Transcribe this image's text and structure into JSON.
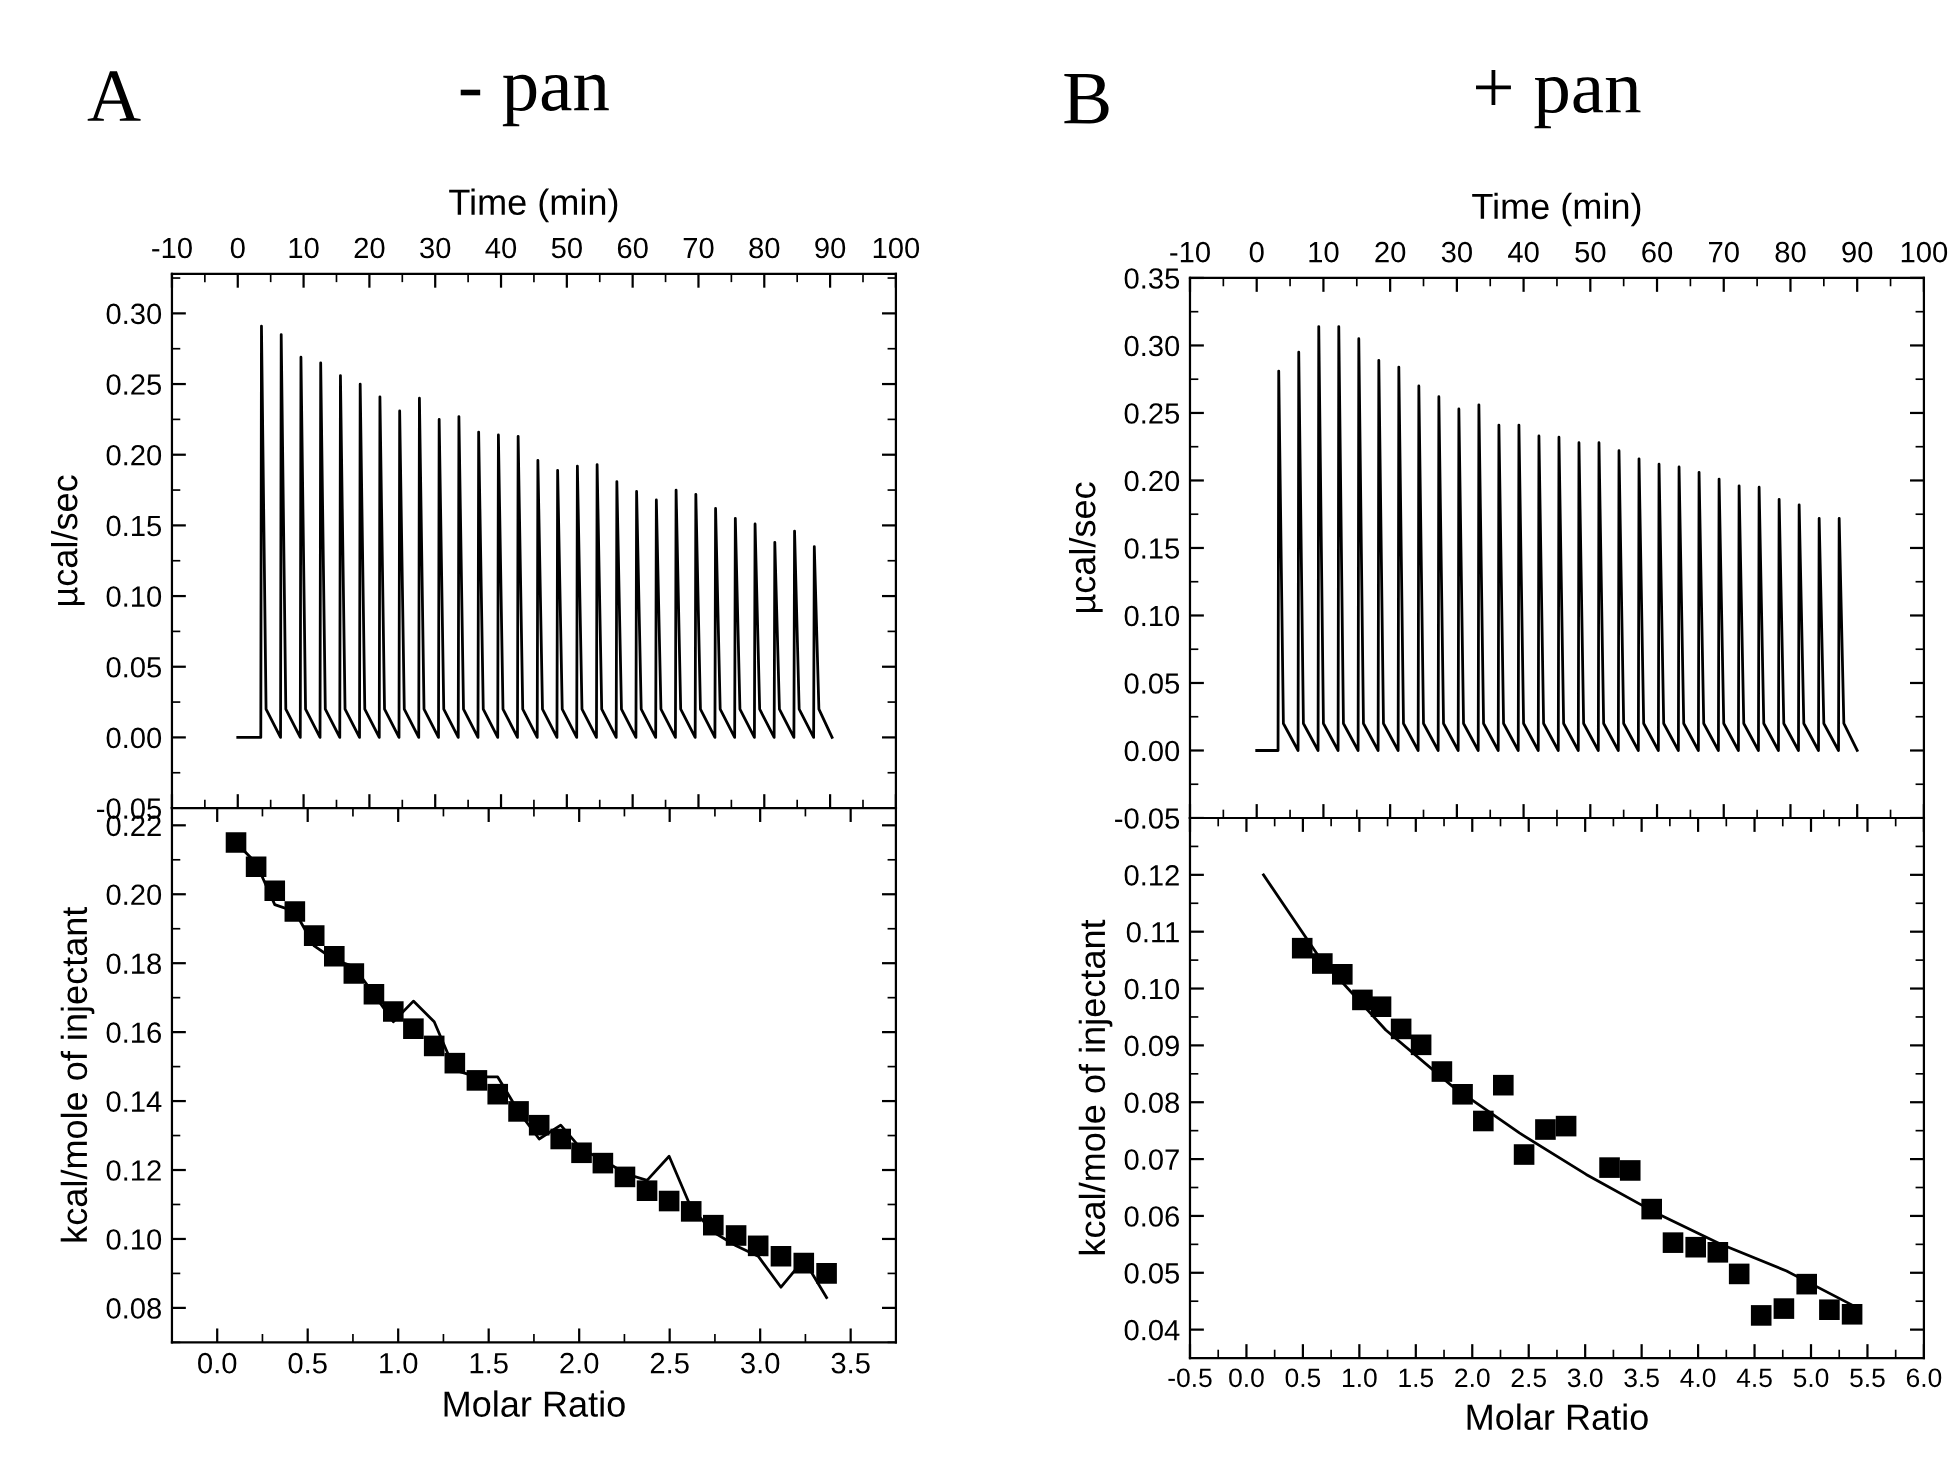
{
  "chart_data": [
    {
      "type": "line",
      "title": "- pan",
      "annotations": [
        "A"
      ],
      "xlabel": "Time (min)",
      "ylabel": "µcal/sec",
      "xlim": [
        -10,
        100
      ],
      "xticks": [
        -10,
        0,
        10,
        20,
        30,
        40,
        50,
        60,
        70,
        80,
        90,
        100
      ],
      "ylim": [
        -0.05,
        0.328
      ],
      "yticks": [
        {
          "value": -0.05,
          "label": "-0.05"
        },
        {
          "value": 0,
          "label": "0.00"
        },
        {
          "value": 0.05,
          "label": "0.05"
        },
        {
          "value": 0.1,
          "label": "0.10"
        },
        {
          "value": 0.15,
          "label": "0.15"
        },
        {
          "value": 0.2,
          "label": "0.20"
        },
        {
          "value": 0.25,
          "label": "0.25"
        },
        {
          "value": 0.3,
          "label": "0.30"
        }
      ],
      "series": [
        {
          "color": "#000000",
          "marker": "none",
          "line_style": "solid",
          "x": [
            0,
            3.5,
            3.6,
            4.3,
            6.5,
            6.6,
            7.3,
            9.5,
            9.6,
            10.3,
            12.5,
            12.6,
            13.3,
            15.5,
            15.6,
            16.3,
            18.5,
            18.6,
            19.3,
            21.5,
            21.6,
            22.3,
            24.5,
            24.6,
            25.3,
            27.5,
            27.6,
            28.3,
            30.5,
            30.6,
            31.3,
            33.5,
            33.6,
            34.3,
            36.5,
            36.6,
            37.3,
            39.5,
            39.6,
            40.3,
            42.5,
            42.6,
            43.3,
            45.5,
            45.6,
            46.3,
            48.5,
            48.6,
            49.3,
            51.5,
            51.6,
            52.3,
            54.5,
            54.6,
            55.3,
            57.5,
            57.6,
            58.3,
            60.5,
            60.6,
            61.3,
            63.5,
            63.6,
            64.3,
            66.5,
            66.6,
            67.3,
            69.5,
            69.6,
            70.3,
            72.5,
            72.6,
            73.3,
            75.5,
            75.6,
            76.3,
            78.5,
            78.6,
            79.3,
            81.5,
            81.6,
            82.3,
            84.5,
            84.6,
            85.3,
            87.5,
            87.6,
            88.3,
            90.3
          ],
          "values": [
            0,
            0,
            0.291,
            0.02,
            0,
            0.285,
            0.02,
            0,
            0.269,
            0.02,
            0,
            0.265,
            0.02,
            0,
            0.256,
            0.02,
            0,
            0.25,
            0.02,
            0,
            0.241,
            0.02,
            0,
            0.231,
            0.02,
            0,
            0.24,
            0.02,
            0,
            0.225,
            0.02,
            0,
            0.227,
            0.02,
            0,
            0.216,
            0.02,
            0,
            0.214,
            0.02,
            0,
            0.213,
            0.02,
            0,
            0.196,
            0.02,
            0,
            0.189,
            0.02,
            0,
            0.192,
            0.02,
            0,
            0.193,
            0.02,
            0,
            0.181,
            0.02,
            0,
            0.174,
            0.02,
            0,
            0.168,
            0.02,
            0,
            0.175,
            0.02,
            0,
            0.172,
            0.02,
            0,
            0.162,
            0.02,
            0,
            0.155,
            0.02,
            0,
            0.151,
            0.02,
            0,
            0.138,
            0.02,
            0,
            0.146,
            0.02,
            0,
            0.135,
            0.02,
            0
          ]
        }
      ]
    },
    {
      "type": "scatter",
      "xlabel": "Molar Ratio",
      "ylabel": "kcal/mole of injectant",
      "xlim": [
        -0.25,
        3.75
      ],
      "xticks": [
        {
          "value": 0,
          "label": "0.0"
        },
        {
          "value": 0.5,
          "label": "0.5"
        },
        {
          "value": 1,
          "label": "1.0"
        },
        {
          "value": 1.5,
          "label": "1.5"
        },
        {
          "value": 2,
          "label": "2.0"
        },
        {
          "value": 2.5,
          "label": "2.5"
        },
        {
          "value": 3,
          "label": "3.0"
        },
        {
          "value": 3.5,
          "label": "3.5"
        }
      ],
      "ylim": [
        0.07,
        0.225
      ],
      "yticks": [
        {
          "value": 0.08,
          "label": "0.08"
        },
        {
          "value": 0.1,
          "label": "0.10"
        },
        {
          "value": 0.12,
          "label": "0.12"
        },
        {
          "value": 0.14,
          "label": "0.14"
        },
        {
          "value": 0.16,
          "label": "0.16"
        },
        {
          "value": 0.18,
          "label": "0.18"
        },
        {
          "value": 0.2,
          "label": "0.20"
        },
        {
          "value": 0.22,
          "label": "0.22"
        }
      ],
      "series": [
        {
          "type": "scatter",
          "color": "#000000",
          "marker": "square",
          "x": [
            0.104,
            0.215,
            0.318,
            0.429,
            0.536,
            0.647,
            0.755,
            0.866,
            0.973,
            1.084,
            1.199,
            1.313,
            1.435,
            1.55,
            1.665,
            1.779,
            1.898,
            2.013,
            2.131,
            2.253,
            2.375,
            2.497,
            2.619,
            2.741,
            2.867,
            2.989,
            3.115,
            3.241,
            3.367
          ],
          "values": [
            0.215,
            0.208,
            0.201,
            0.195,
            0.188,
            0.182,
            0.177,
            0.171,
            0.166,
            0.161,
            0.156,
            0.151,
            0.146,
            0.142,
            0.137,
            0.133,
            0.129,
            0.125,
            0.122,
            0.118,
            0.114,
            0.111,
            0.108,
            0.104,
            0.101,
            0.098,
            0.095,
            0.093,
            0.09
          ]
        },
        {
          "type": "line",
          "color": "#000000",
          "marker": "none",
          "line_style": "solid",
          "x": [
            0.104,
            0.215,
            0.318,
            0.429,
            0.536,
            0.647,
            0.755,
            0.866,
            0.973,
            1.084,
            1.199,
            1.313,
            1.435,
            1.55,
            1.665,
            1.779,
            1.898,
            2.013,
            2.131,
            2.253,
            2.375,
            2.497,
            2.619,
            2.741,
            2.867,
            2.989,
            3.115,
            3.241,
            3.367
          ],
          "values": [
            0.215,
            0.209,
            0.197,
            0.195,
            0.185,
            0.181,
            0.179,
            0.171,
            0.163,
            0.169,
            0.163,
            0.149,
            0.147,
            0.147,
            0.137,
            0.129,
            0.133,
            0.126,
            0.123,
            0.119,
            0.117,
            0.124,
            0.109,
            0.102,
            0.098,
            0.095,
            0.086,
            0.094,
            0.083
          ]
        }
      ]
    },
    {
      "type": "line",
      "title": "+ pan",
      "annotations": [
        "B"
      ],
      "xlabel": "Time (min)",
      "ylabel": "µcal/sec",
      "xlim": [
        -10,
        100
      ],
      "xticks": [
        -10,
        0,
        10,
        20,
        30,
        40,
        50,
        60,
        70,
        80,
        90,
        100
      ],
      "ylim": [
        -0.05,
        0.35
      ],
      "yticks": [
        {
          "value": -0.05,
          "label": "-0.05"
        },
        {
          "value": 0,
          "label": "0.00"
        },
        {
          "value": 0.05,
          "label": "0.05"
        },
        {
          "value": 0.1,
          "label": "0.10"
        },
        {
          "value": 0.15,
          "label": "0.15"
        },
        {
          "value": 0.2,
          "label": "0.20"
        },
        {
          "value": 0.25,
          "label": "0.25"
        },
        {
          "value": 0.3,
          "label": "0.30"
        },
        {
          "value": 0.35,
          "label": "0.35"
        }
      ],
      "series": [
        {
          "color": "#000000",
          "marker": "none",
          "line_style": "solid",
          "x": [
            0,
            3.2,
            3.3,
            4.0,
            6.2,
            6.3,
            7.0,
            9.2,
            9.3,
            10.0,
            12.2,
            12.3,
            13.0,
            15.2,
            15.3,
            16.0,
            18.2,
            18.3,
            19.0,
            21.2,
            21.3,
            22.0,
            24.2,
            24.3,
            25.0,
            27.2,
            27.3,
            28.0,
            30.2,
            30.3,
            31.0,
            33.2,
            33.3,
            34.0,
            36.2,
            36.3,
            37.0,
            39.2,
            39.3,
            40.0,
            42.2,
            42.3,
            43.0,
            45.2,
            45.3,
            46.0,
            48.2,
            48.3,
            49.0,
            51.2,
            51.3,
            52.0,
            54.2,
            54.3,
            55.0,
            57.2,
            57.3,
            58.0,
            60.2,
            60.3,
            61.0,
            63.2,
            63.3,
            64.0,
            66.2,
            66.3,
            67.0,
            69.2,
            69.3,
            70.0,
            72.2,
            72.3,
            73.0,
            75.2,
            75.3,
            76.0,
            78.2,
            78.3,
            79.0,
            81.2,
            81.3,
            82.0,
            84.2,
            84.3,
            85.0,
            87.2,
            87.3,
            88.0,
            90
          ],
          "values": [
            0,
            0,
            0.281,
            0.02,
            0,
            0.295,
            0.02,
            0,
            0.314,
            0.02,
            0,
            0.314,
            0.02,
            0,
            0.305,
            0.02,
            0,
            0.289,
            0.02,
            0,
            0.284,
            0.02,
            0,
            0.27,
            0.02,
            0,
            0.262,
            0.02,
            0,
            0.253,
            0.02,
            0,
            0.256,
            0.02,
            0,
            0.241,
            0.02,
            0,
            0.241,
            0.02,
            0,
            0.233,
            0.02,
            0,
            0.232,
            0.02,
            0,
            0.228,
            0.02,
            0,
            0.228,
            0.02,
            0,
            0.222,
            0.02,
            0,
            0.216,
            0.02,
            0,
            0.212,
            0.02,
            0,
            0.21,
            0.02,
            0,
            0.206,
            0.02,
            0,
            0.201,
            0.02,
            0,
            0.196,
            0.02,
            0,
            0.195,
            0.02,
            0,
            0.186,
            0.02,
            0,
            0.182,
            0.02,
            0,
            0.172,
            0.02,
            0,
            0.172,
            0.02,
            0
          ]
        }
      ]
    },
    {
      "type": "scatter",
      "xlabel": "Molar Ratio",
      "ylabel": "kcal/mole of injectant",
      "xlim": [
        -0.5,
        6.0
      ],
      "xticks": [
        {
          "value": -0.5,
          "label": "-0.5"
        },
        {
          "value": 0,
          "label": "0.0"
        },
        {
          "value": 0.5,
          "label": "0.5"
        },
        {
          "value": 1,
          "label": "1.0"
        },
        {
          "value": 1.5,
          "label": "1.5"
        },
        {
          "value": 2,
          "label": "2.0"
        },
        {
          "value": 2.5,
          "label": "2.5"
        },
        {
          "value": 3,
          "label": "3.0"
        },
        {
          "value": 3.5,
          "label": "3.5"
        },
        {
          "value": 4,
          "label": "4.0"
        },
        {
          "value": 4.5,
          "label": "4.5"
        },
        {
          "value": 5,
          "label": "5.0"
        },
        {
          "value": 5.5,
          "label": "5.5"
        },
        {
          "value": 6,
          "label": "6.0"
        }
      ],
      "ylim": [
        0.035,
        0.13
      ],
      "yticks": [
        {
          "value": 0.04,
          "label": "0.04"
        },
        {
          "value": 0.05,
          "label": "0.05"
        },
        {
          "value": 0.06,
          "label": "0.06"
        },
        {
          "value": 0.07,
          "label": "0.07"
        },
        {
          "value": 0.08,
          "label": "0.08"
        },
        {
          "value": 0.09,
          "label": "0.09"
        },
        {
          "value": 0.1,
          "label": "0.10"
        },
        {
          "value": 0.11,
          "label": "0.11"
        },
        {
          "value": 0.12,
          "label": "0.12"
        }
      ],
      "series": [
        {
          "type": "scatter",
          "color": "#000000",
          "marker": "square",
          "x": [
            0.494,
            0.672,
            0.849,
            1.027,
            1.192,
            1.37,
            1.547,
            1.731,
            1.914,
            2.098,
            2.275,
            2.459,
            2.648,
            2.831,
            3.216,
            3.399,
            3.589,
            3.778,
            3.979,
            4.175,
            4.364,
            4.559,
            4.76,
            4.962,
            5.163,
            5.364
          ],
          "values": [
            0.1071,
            0.1044,
            0.1025,
            0.098,
            0.0968,
            0.0929,
            0.0901,
            0.0854,
            0.0814,
            0.0767,
            0.083,
            0.0708,
            0.0752,
            0.0758,
            0.0685,
            0.068,
            0.0612,
            0.0553,
            0.0545,
            0.0536,
            0.0498,
            0.0425,
            0.0437,
            0.048,
            0.0435,
            0.0427
          ]
        },
        {
          "type": "line",
          "color": "#000000",
          "marker": "none",
          "line_style": "solid",
          "x": [
            0.151,
            0.642,
            1.234,
            1.825,
            2.417,
            3.009,
            3.601,
            4.192,
            4.784,
            5.376
          ],
          "values": [
            0.12,
            0.1056,
            0.0927,
            0.0828,
            0.0746,
            0.0673,
            0.0608,
            0.0551,
            0.0503,
            0.0442
          ]
        }
      ]
    }
  ]
}
